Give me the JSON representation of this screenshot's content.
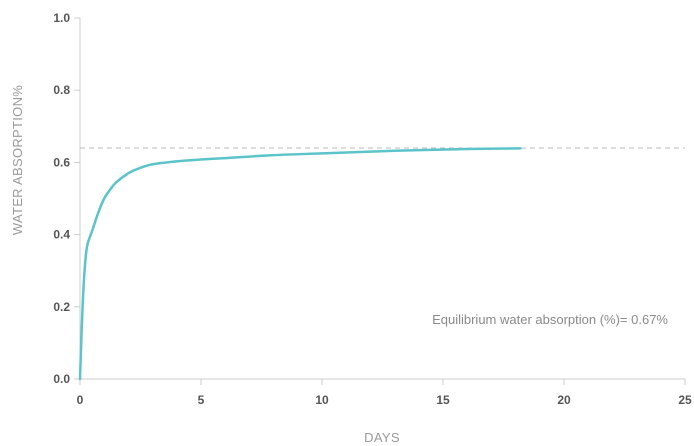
{
  "chart_data": {
    "type": "line",
    "title": "",
    "xlabel": "DAYS",
    "ylabel": "WATER ABSORPTION%",
    "xlim": [
      0,
      25
    ],
    "ylim": [
      0,
      1.0
    ],
    "xticks": [
      "0",
      "5",
      "10",
      "15",
      "20",
      "25"
    ],
    "yticks": [
      "0.0",
      "0.2",
      "0.4",
      "0.6",
      "0.8",
      "1.0"
    ],
    "grid": false,
    "series": [
      {
        "color": "#5bc4cb",
        "x": [
          0,
          0.1,
          0.2,
          0.3,
          0.5,
          0.75,
          1.0,
          1.25,
          1.5,
          2.0,
          2.5,
          3.0,
          4.0,
          5.0,
          6.0,
          8.0,
          10.0,
          12.0,
          14.0,
          16.0,
          18.2
        ],
        "y": [
          0,
          0.19,
          0.31,
          0.37,
          0.41,
          0.46,
          0.5,
          0.525,
          0.545,
          0.57,
          0.585,
          0.595,
          0.603,
          0.608,
          0.612,
          0.62,
          0.625,
          0.63,
          0.634,
          0.637,
          0.639
        ]
      }
    ],
    "reference_line": {
      "y": 0.64,
      "style": "dashed",
      "color": "#bbbbbb"
    },
    "annotation": {
      "text": "Equilibrium water absorption (%)= 0.67%"
    }
  }
}
